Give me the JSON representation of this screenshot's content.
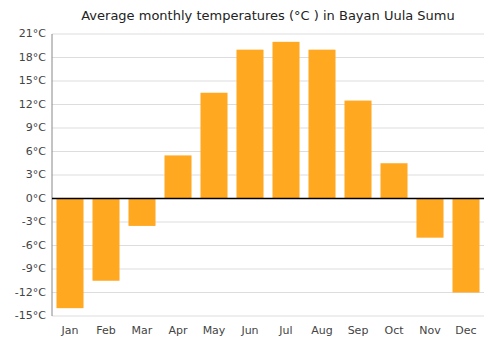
{
  "chart_data": {
    "type": "bar",
    "title": "Average monthly temperatures (°C ) in Bayan Uula Sumu",
    "categories": [
      "Jan",
      "Feb",
      "Mar",
      "Apr",
      "May",
      "Jun",
      "Jul",
      "Aug",
      "Sep",
      "Oct",
      "Nov",
      "Dec"
    ],
    "values": [
      -14,
      -10.5,
      -3.5,
      5.5,
      13.5,
      19,
      20,
      19,
      12.5,
      4.5,
      -5,
      -12
    ],
    "color": "#FFA820",
    "ylim": [
      -15,
      21
    ],
    "yticks": [
      {
        "value": -15,
        "label": "-15°C"
      },
      {
        "value": -12,
        "label": "-12°C"
      },
      {
        "value": -9,
        "label": "-9°C"
      },
      {
        "value": -6,
        "label": "-6°C"
      },
      {
        "value": -3,
        "label": "-3°C"
      },
      {
        "value": 0,
        "label": "0°C"
      },
      {
        "value": 3,
        "label": "3°C"
      },
      {
        "value": 6,
        "label": "6°C"
      },
      {
        "value": 9,
        "label": "9°C"
      },
      {
        "value": 12,
        "label": "12°C"
      },
      {
        "value": 15,
        "label": "15°C"
      },
      {
        "value": 18,
        "label": "18°C"
      },
      {
        "value": 21,
        "label": "21°C"
      }
    ],
    "grid": true
  }
}
